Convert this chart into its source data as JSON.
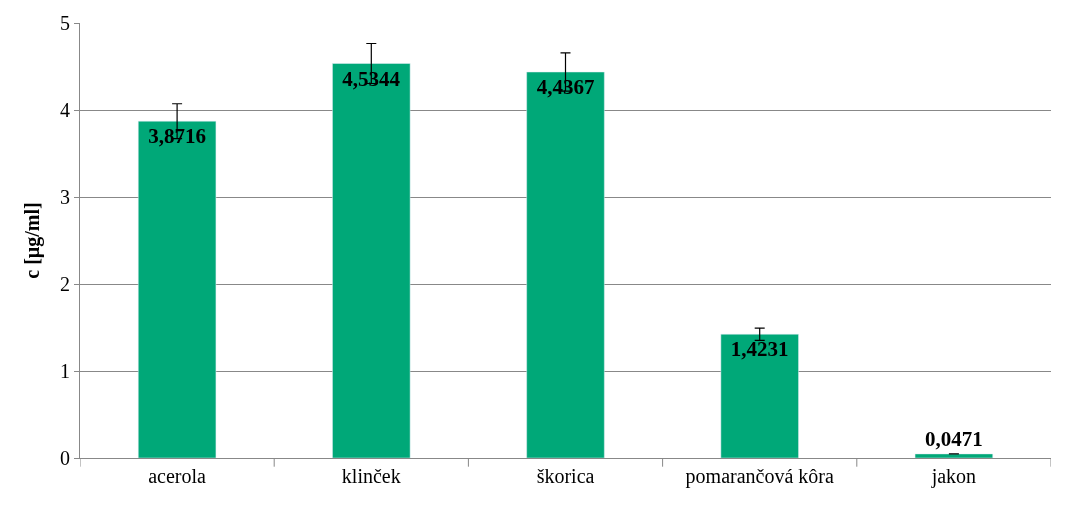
{
  "chart_data": {
    "type": "bar",
    "ylabel": "c [µg/ml]",
    "categories": [
      "acerola",
      "klinček",
      "škorica",
      "pomarančová kôra",
      "jakon"
    ],
    "values": [
      3.8716,
      4.5344,
      4.4367,
      1.4231,
      0.0471
    ],
    "value_labels": [
      "3,8716",
      "4,5344",
      "4,4367",
      "1,4231",
      "0,0471"
    ],
    "errors": [
      0.2,
      0.23,
      0.22,
      0.07,
      null
    ],
    "color": "#00a878",
    "ylim": [
      0,
      5
    ],
    "yticks": [
      0,
      1,
      2,
      3,
      4,
      5
    ],
    "grid": "y",
    "legend": false
  }
}
